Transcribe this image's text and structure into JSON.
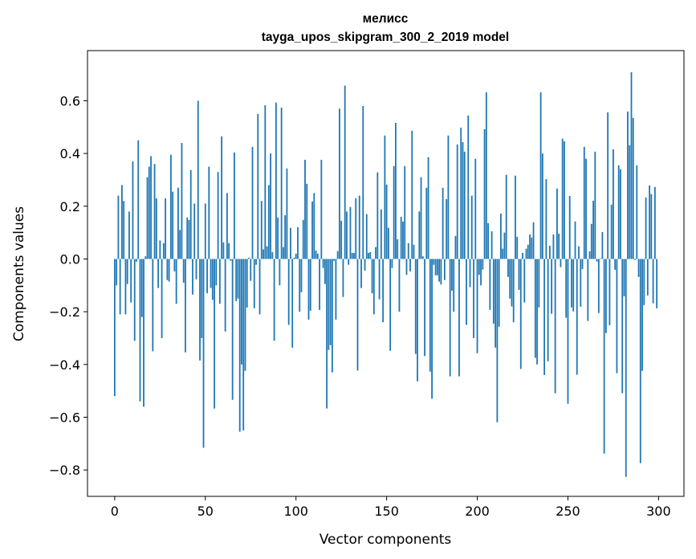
{
  "chart_data": {
    "type": "bar",
    "title_line1": "мелисс",
    "title_line2": "tayga_upos_skipgram_300_2_2019 model",
    "xlabel": "Vector components",
    "ylabel": "Components values",
    "xlim": [
      -15,
      314
    ],
    "ylim": [
      -0.9,
      0.79
    ],
    "xticks": [
      0,
      50,
      100,
      150,
      200,
      250,
      300
    ],
    "xtick_labels": [
      "0",
      "50",
      "100",
      "150",
      "200",
      "250",
      "300"
    ],
    "yticks": [
      -0.8,
      -0.6,
      -0.4,
      -0.2,
      0.0,
      0.2,
      0.4,
      0.6
    ],
    "ytick_labels": [
      "−0.8",
      "−0.6",
      "−0.4",
      "−0.2",
      "0.0",
      "0.2",
      "0.4",
      "0.6"
    ],
    "grid": false,
    "bar_color": "#1f77b4",
    "values": [
      -0.52,
      -0.1,
      0.24,
      -0.21,
      0.28,
      0.22,
      -0.21,
      -0.095,
      0.18,
      -0.165,
      0.37,
      -0.31,
      -0.01,
      0.45,
      -0.54,
      -0.22,
      -0.56,
      0.01,
      0.31,
      0.35,
      0.39,
      -0.35,
      0.36,
      0.23,
      -0.11,
      0.07,
      -0.3,
      0.06,
      0.23,
      -0.08,
      -0.086,
      0.395,
      0.255,
      -0.047,
      -0.17,
      0.27,
      0.11,
      0.44,
      -0.09,
      -0.354,
      0.157,
      0.148,
      0.337,
      -0.135,
      0.21,
      -0.077,
      0.6,
      -0.385,
      -0.3,
      -0.716,
      0.21,
      -0.13,
      0.35,
      -0.11,
      -0.155,
      -0.567,
      -0.1,
      0.33,
      -0.17,
      0.465,
      0.063,
      -0.275,
      0.25,
      0.06,
      -0.007,
      -0.534,
      0.404,
      -0.16,
      -0.15,
      -0.655,
      -0.4,
      -0.65,
      -0.424,
      -0.184,
      0.005,
      -0.083,
      0.425,
      -0.187,
      -0.022,
      0.55,
      -0.21,
      0.22,
      0.036,
      0.583,
      0.048,
      0.28,
      0.4,
      0.026,
      -0.31,
      0.593,
      0.157,
      -0.1,
      0.574,
      0.045,
      0.166,
      0.343,
      -0.25,
      0.118,
      -0.336,
      0.005,
      0.02,
      0.12,
      -0.2,
      -0.126,
      0.148,
      0.376,
      0.285,
      -0.23,
      -0.196,
      0.218,
      0.25,
      0.032,
      0.02,
      -0.193,
      0.376,
      -0.034,
      -0.095,
      -0.567,
      -0.345,
      -0.327,
      -0.43,
      -0.007,
      -0.23,
      0.03,
      0.57,
      0.145,
      -0.144,
      0.657,
      0.18,
      -0.022,
      0.197,
      0.023,
      0.023,
      0.23,
      -0.423,
      0.24,
      -0.11,
      0.58,
      -0.044,
      0.17,
      0.023,
      0.026,
      -0.13,
      -0.21,
      0.045,
      0.328,
      -0.153,
      0.188,
      -0.24,
      0.468,
      0.282,
      0.118,
      -0.348,
      -0.034,
      0.352,
      0.516,
      0.075,
      -0.2,
      0.16,
      0.142,
      0.352,
      -0.06,
      0.06,
      -0.047,
      0.486,
      0.054,
      -0.36,
      -0.464,
      0.18,
      0.31,
      0.01,
      -0.368,
      0.27,
      0.386,
      -0.427,
      -0.53,
      -0.022,
      -0.062,
      -0.062,
      -0.086,
      -0.097,
      0.27,
      -0.08,
      0.227,
      0.468,
      -0.445,
      -0.12,
      -0.2,
      0.087,
      0.434,
      -0.445,
      0.498,
      0.443,
      0.407,
      -0.25,
      0.544,
      -0.107,
      0.24,
      -0.3,
      0.38,
      -0.357,
      -0.06,
      -0.1,
      -0.04,
      0.492,
      0.632,
      0.136,
      -0.193,
      0.105,
      -0.245,
      -0.336,
      -0.619,
      -0.257,
      0.172,
      0.039,
      0.1,
      0.319,
      -0.068,
      -0.15,
      -0.18,
      -0.24,
      0.316,
      0.084,
      -0.117,
      -0.417,
      0.023,
      -0.165,
      0.039,
      0.054,
      0.093,
      0.081,
      0.139,
      -0.375,
      -0.4,
      -0.184,
      0.632,
      0.4,
      -0.44,
      0.303,
      -0.388,
      0.05,
      -0.208,
      0.093,
      -0.509,
      0.267,
      0.096,
      -0.031,
      0.456,
      0.446,
      -0.223,
      -0.549,
      0.239,
      -0.184,
      -0.199,
      0.142,
      -0.439,
      0.048,
      -0.181,
      -0.038,
      0.425,
      0.38,
      -0.235,
      0.029,
      0.133,
      0.221,
      0.407,
      -0.01,
      -0.205,
      0.002,
      0.102,
      -0.738,
      -0.281,
      0.556,
      -0.251,
      0.206,
      0.416,
      -0.041,
      -0.433,
      0.355,
      0.34,
      -0.509,
      -0.141,
      -0.826,
      0.559,
      0.431,
      0.708,
      0.535,
      -0.004,
      0.355,
      -0.068,
      -0.774,
      -0.424,
      -0.175,
      0.233,
      -0.138,
      0.279,
      0.246,
      -0.168,
      0.273,
      -0.187
    ]
  }
}
